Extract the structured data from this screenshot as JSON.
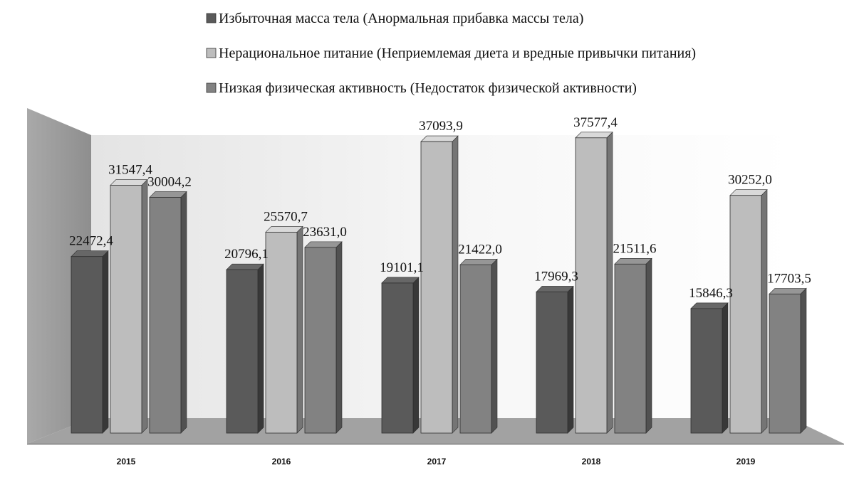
{
  "chart_data": {
    "type": "bar",
    "categories": [
      "2015",
      "2016",
      "2017",
      "2018",
      "2019"
    ],
    "series": [
      {
        "name": "Избыточная масса тела (Анормальная прибавка массы тела)",
        "values": [
          22472.4,
          20796.1,
          19101.1,
          17969.3,
          15846.3
        ],
        "labels": [
          "22472,4",
          "20796,1",
          "19101,1",
          "17969,3",
          "15846,3"
        ],
        "color": "#5a5a5a"
      },
      {
        "name": "Нерациональное питание (Неприемлемая диета и вредные привычки питания)",
        "values": [
          31547.4,
          25570.7,
          37093.9,
          37577.4,
          30252.0
        ],
        "labels": [
          "31547,4",
          "25570,7",
          "37093,9",
          "37577,4",
          "30252,0"
        ],
        "color": "#bdbdbd"
      },
      {
        "name": "Низкая физическая активность (Недостаток физической активности)",
        "values": [
          30004.2,
          23631.0,
          21422.0,
          21511.6,
          17703.5
        ],
        "labels": [
          "30004,2",
          "23631,0",
          "21422,0",
          "21511,6",
          "17703,5"
        ],
        "color": "#828282"
      }
    ],
    "legend_position": "top",
    "grid": false,
    "style": "3d"
  }
}
